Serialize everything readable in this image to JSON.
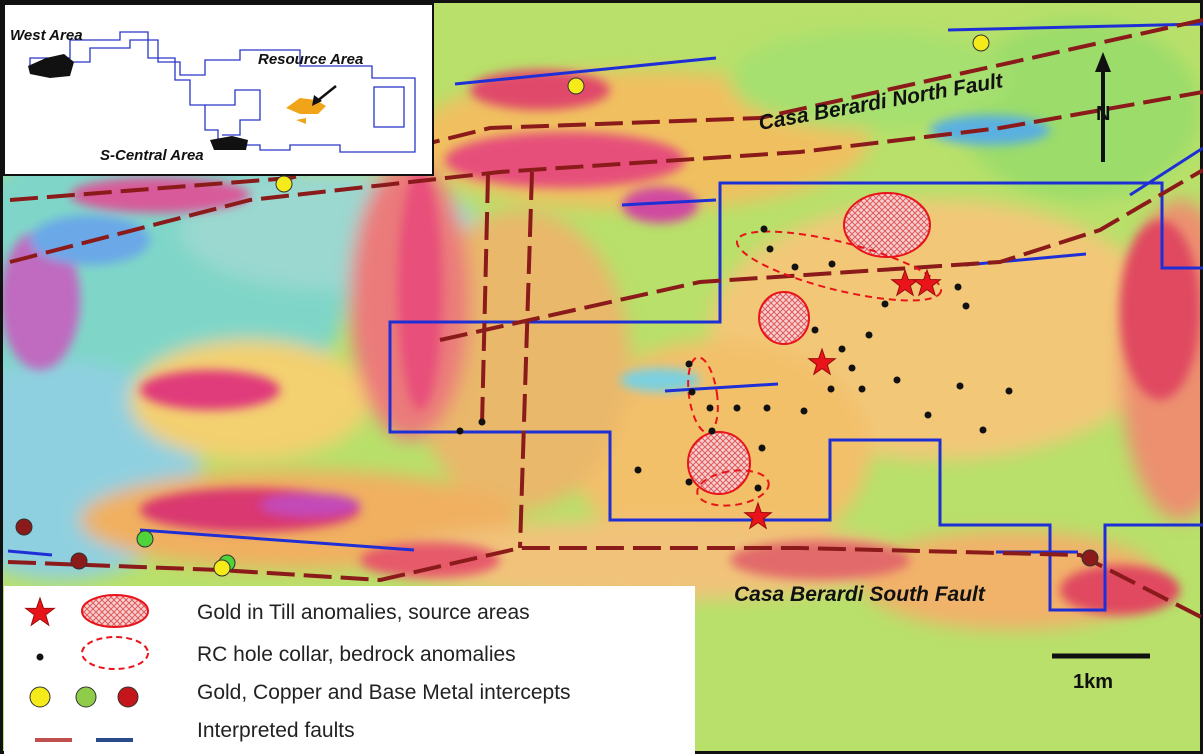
{
  "map": {
    "fault_labels": {
      "north": "Casa Berardi North Fault",
      "south": "Casa Berardi South Fault"
    },
    "north_arrow": "N",
    "scale_bar": "1km"
  },
  "inset": {
    "areas": {
      "west": "West Area",
      "resource": "Resource Area",
      "s_central": "S-Central Area"
    }
  },
  "legend": {
    "items": [
      {
        "label": "Gold in Till anomalies, source areas",
        "icon": "star-and-hatched-ellipse"
      },
      {
        "label": "RC hole collar, bedrock anomalies",
        "icon": "dot-and-dashed-ellipse"
      },
      {
        "label": "Gold, Copper and Base Metal intercepts",
        "icon": "yellow-green-red-circles"
      },
      {
        "label": "Interpreted faults",
        "icon": "red-and-blue-lines"
      }
    ]
  },
  "colors": {
    "fault_dashed": "#8b1a1a",
    "claim_outline": "#1f2fd6",
    "gold_intercept": "#f5ea1a",
    "copper_intercept": "#4fd23a",
    "base_metal_intercept": "#8b1a1a",
    "till_star": "#e8141a",
    "collar_dot": "#111111"
  }
}
